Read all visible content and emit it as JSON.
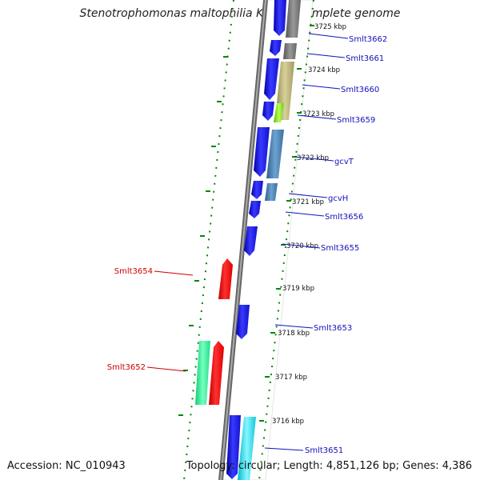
{
  "title": "Stenotrophomonas maltophilia K279a, complete genome",
  "footer": {
    "accession_label": "Accession:",
    "accession": "NC_010943",
    "topology_label": "Topology:",
    "topology": "circular",
    "length_label": "Length:",
    "length": "4,851,126 bp",
    "genes_label": "Genes:",
    "genes": "4,386"
  },
  "colors": {
    "forward": "#2020ee",
    "reverse_red": "#ee1111",
    "gray": "#777777",
    "olive": "#b5ad70",
    "lime": "#88ee22",
    "steel": "#4682b4",
    "cyan": "#22ddee",
    "aqua_green": "#22ee99",
    "tick_green": "#008800",
    "label_blue": "#1111bb",
    "label_red": "#cc0000"
  },
  "kbp_ticks": [
    {
      "label": "3725 kbp"
    },
    {
      "label": "3724 kbp"
    },
    {
      "label": "3723 kbp"
    },
    {
      "label": "3722 kbp"
    },
    {
      "label": "3721 kbp"
    },
    {
      "label": "3720 kbp"
    },
    {
      "label": "3719 kbp"
    },
    {
      "label": "3718 kbp"
    },
    {
      "label": "3717 kbp"
    },
    {
      "label": "3716 kbp"
    }
  ],
  "gene_labels": [
    {
      "name": "Smlt3662",
      "color": "blue"
    },
    {
      "name": "Smlt3661",
      "color": "blue"
    },
    {
      "name": "Smlt3660",
      "color": "blue"
    },
    {
      "name": "Smlt3659",
      "color": "blue"
    },
    {
      "name": "gcvT",
      "color": "blue"
    },
    {
      "name": "gcvH",
      "color": "blue"
    },
    {
      "name": "Smlt3656",
      "color": "blue"
    },
    {
      "name": "Smlt3655",
      "color": "blue"
    },
    {
      "name": "Smlt3654",
      "color": "red"
    },
    {
      "name": "Smlt3653",
      "color": "blue"
    },
    {
      "name": "Smlt3652",
      "color": "red"
    },
    {
      "name": "Smlt3651",
      "color": "blue"
    }
  ]
}
